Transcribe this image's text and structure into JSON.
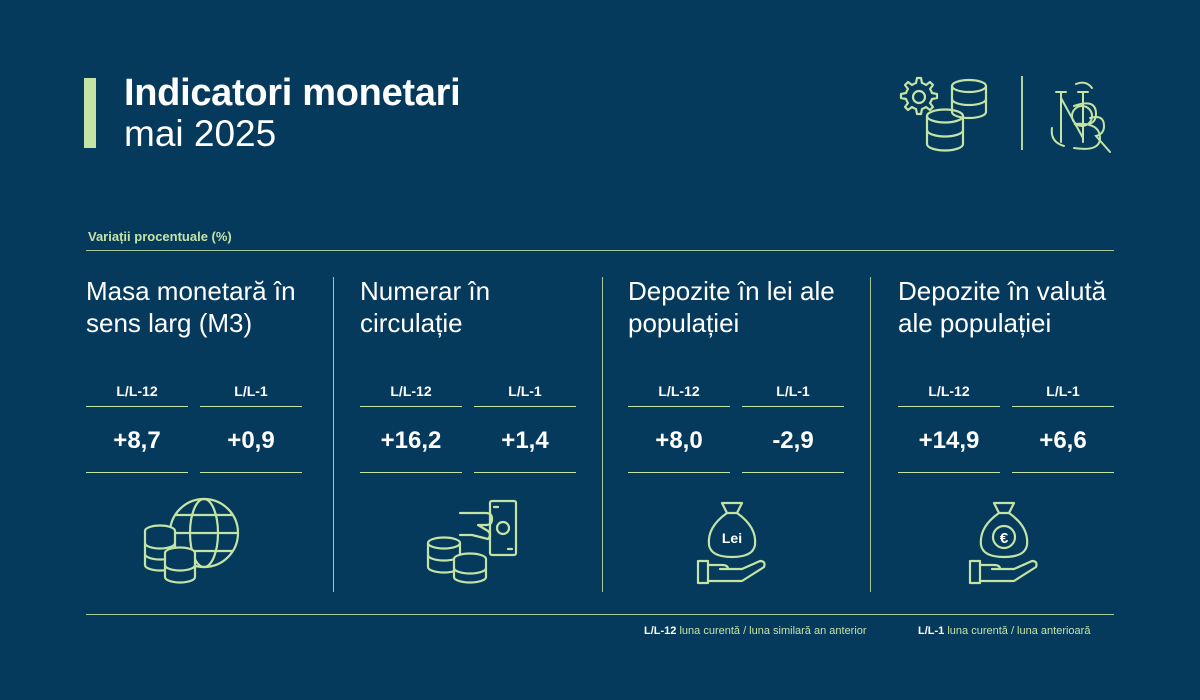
{
  "header": {
    "title": "Indicatori monetari",
    "subtitle": "mai 2025"
  },
  "caption": "Variații procentuale (%)",
  "period_labels": {
    "yoy": "L/L-12",
    "mom": "L/L-1"
  },
  "indicators": [
    {
      "title": "Masa monetară în sens larg (M3)",
      "yoy": "+8,7",
      "mom": "+0,9",
      "icon": "coins-globe-icon"
    },
    {
      "title": "Numerar în circulație",
      "yoy": "+16,2",
      "mom": "+1,4",
      "icon": "coins-banknote-hand-icon"
    },
    {
      "title": "Depozite în lei ale populației",
      "yoy": "+8,0",
      "mom": "-2,9",
      "icon": "money-bag-lei-hand-icon",
      "bag_label": "Lei"
    },
    {
      "title": "Depozite în valută ale populației",
      "yoy": "+14,9",
      "mom": "+6,6",
      "icon": "money-bag-euro-hand-icon",
      "bag_label": "€"
    }
  ],
  "legend": [
    {
      "key": "L/L-12",
      "text": "luna curentă / luna similară an anterior"
    },
    {
      "key": "L/L-1",
      "text": "luna curentă / luna anterioară"
    }
  ],
  "colors": {
    "background": "#053a5c",
    "accent": "#c4e4a6",
    "text": "#ffffff"
  },
  "logo": {
    "monogram": "BNR",
    "icon": "gears-coins-icon"
  }
}
